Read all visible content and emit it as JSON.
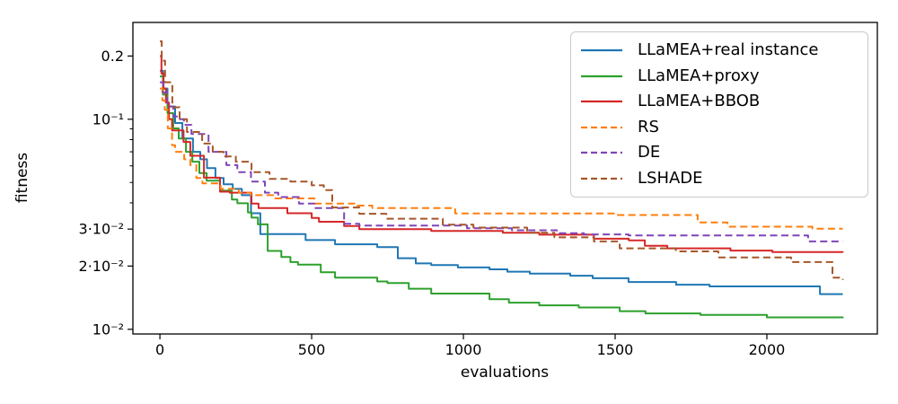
{
  "chart_data": {
    "type": "line",
    "title": "",
    "xlabel": "evaluations",
    "ylabel": "fitness",
    "x_scale": "linear",
    "y_scale": "log",
    "xlim": [
      -89,
      2364
    ],
    "ylim": [
      0.0095,
      0.289
    ],
    "grid": false,
    "legend_position": "upper right",
    "x_ticks": [
      {
        "value": 0,
        "label": "0"
      },
      {
        "value": 500,
        "label": "500"
      },
      {
        "value": 1000,
        "label": "1000"
      },
      {
        "value": 1500,
        "label": "1500"
      },
      {
        "value": 2000,
        "label": "2000"
      }
    ],
    "y_ticks": [
      {
        "value": 0.2,
        "label": "0.2"
      },
      {
        "value": 0.1,
        "label": "10⁻¹"
      },
      {
        "value": 0.03,
        "label": "3·10⁻²"
      },
      {
        "value": 0.02,
        "label": "2·10⁻²"
      },
      {
        "value": 0.01,
        "label": "10⁻²"
      }
    ],
    "y_minor_ticks": [
      0.09,
      0.08,
      0.07,
      0.06,
      0.05,
      0.04
    ],
    "series": [
      {
        "name": "LLaMEA+real instance",
        "color": "#1f77b4",
        "style": "solid",
        "points": [
          [
            0,
            0.17
          ],
          [
            10,
            0.14
          ],
          [
            25,
            0.115
          ],
          [
            50,
            0.096
          ],
          [
            74,
            0.081
          ],
          [
            109,
            0.07
          ],
          [
            133,
            0.0645
          ],
          [
            155,
            0.0585
          ],
          [
            183,
            0.0525
          ],
          [
            210,
            0.049
          ],
          [
            240,
            0.0466
          ],
          [
            270,
            0.0435
          ],
          [
            300,
            0.0357
          ],
          [
            331,
            0.0284
          ],
          [
            480,
            0.0266
          ],
          [
            577,
            0.0254
          ],
          [
            716,
            0.0246
          ],
          [
            784,
            0.0218
          ],
          [
            843,
            0.0206
          ],
          [
            894,
            0.0202
          ],
          [
            982,
            0.0197
          ],
          [
            1086,
            0.0193
          ],
          [
            1145,
            0.0188
          ],
          [
            1219,
            0.0184
          ],
          [
            1352,
            0.018
          ],
          [
            1426,
            0.0175
          ],
          [
            1544,
            0.0168
          ],
          [
            1701,
            0.0163
          ],
          [
            1811,
            0.016
          ],
          [
            2175,
            0.0147
          ],
          [
            2250,
            0.0147
          ]
        ]
      },
      {
        "name": "LLaMEA+proxy",
        "color": "#2ca02c",
        "style": "solid",
        "points": [
          [
            0,
            0.16
          ],
          [
            10,
            0.131
          ],
          [
            25,
            0.107
          ],
          [
            44,
            0.0905
          ],
          [
            62,
            0.081
          ],
          [
            86,
            0.07
          ],
          [
            107,
            0.0628
          ],
          [
            130,
            0.0555
          ],
          [
            154,
            0.051
          ],
          [
            198,
            0.0457
          ],
          [
            237,
            0.0415
          ],
          [
            255,
            0.0398
          ],
          [
            290,
            0.036
          ],
          [
            302,
            0.034
          ],
          [
            323,
            0.0316
          ],
          [
            355,
            0.0236
          ],
          [
            400,
            0.0221
          ],
          [
            430,
            0.0209
          ],
          [
            455,
            0.0203
          ],
          [
            530,
            0.0187
          ],
          [
            577,
            0.0176
          ],
          [
            716,
            0.0169
          ],
          [
            750,
            0.0166
          ],
          [
            820,
            0.0156
          ],
          [
            894,
            0.0148
          ],
          [
            1086,
            0.0139
          ],
          [
            1150,
            0.0134
          ],
          [
            1250,
            0.013
          ],
          [
            1380,
            0.0127
          ],
          [
            1515,
            0.0122
          ],
          [
            1600,
            0.0119
          ],
          [
            1781,
            0.0117
          ],
          [
            2000,
            0.0114
          ],
          [
            2250,
            0.0113
          ]
        ]
      },
      {
        "name": "LLaMEA+BBOB",
        "color": "#d62728",
        "style": "solid",
        "points": [
          [
            0,
            0.2
          ],
          [
            5,
            0.165
          ],
          [
            12,
            0.14
          ],
          [
            20,
            0.12
          ],
          [
            30,
            0.1
          ],
          [
            40,
            0.0885
          ],
          [
            78,
            0.078
          ],
          [
            100,
            0.067
          ],
          [
            145,
            0.0527
          ],
          [
            198,
            0.0452
          ],
          [
            230,
            0.0447
          ],
          [
            302,
            0.0397
          ],
          [
            325,
            0.0378
          ],
          [
            420,
            0.0357
          ],
          [
            500,
            0.0339
          ],
          [
            524,
            0.0325
          ],
          [
            607,
            0.031
          ],
          [
            657,
            0.03
          ],
          [
            894,
            0.0294
          ],
          [
            1130,
            0.0288
          ],
          [
            1250,
            0.0282
          ],
          [
            1430,
            0.027
          ],
          [
            1545,
            0.0265
          ],
          [
            1598,
            0.025
          ],
          [
            1672,
            0.0243
          ],
          [
            1880,
            0.0237
          ],
          [
            2018,
            0.0233
          ],
          [
            2250,
            0.0232
          ]
        ]
      },
      {
        "name": "RS",
        "color": "#ff7f0e",
        "style": "dashed",
        "points": [
          [
            0,
            0.14
          ],
          [
            8,
            0.123
          ],
          [
            16,
            0.111
          ],
          [
            26,
            0.0905
          ],
          [
            40,
            0.0752
          ],
          [
            50,
            0.07
          ],
          [
            80,
            0.0645
          ],
          [
            100,
            0.0605
          ],
          [
            120,
            0.0525
          ],
          [
            140,
            0.0495
          ],
          [
            200,
            0.0466
          ],
          [
            260,
            0.0447
          ],
          [
            300,
            0.0435
          ],
          [
            380,
            0.042
          ],
          [
            509,
            0.0397
          ],
          [
            650,
            0.0388
          ],
          [
            700,
            0.0378
          ],
          [
            973,
            0.0356
          ],
          [
            1500,
            0.035
          ],
          [
            1772,
            0.0323
          ],
          [
            1870,
            0.0308
          ],
          [
            2150,
            0.0301
          ],
          [
            2250,
            0.0301
          ]
        ]
      },
      {
        "name": "DE",
        "color": "#7e45b8",
        "style": "dashed",
        "points": [
          [
            0,
            0.15
          ],
          [
            10,
            0.134
          ],
          [
            25,
            0.115
          ],
          [
            44,
            0.103
          ],
          [
            59,
            0.1
          ],
          [
            79,
            0.094
          ],
          [
            104,
            0.085
          ],
          [
            160,
            0.07
          ],
          [
            219,
            0.0605
          ],
          [
            255,
            0.056
          ],
          [
            300,
            0.0505
          ],
          [
            346,
            0.0447
          ],
          [
            390,
            0.0426
          ],
          [
            458,
            0.0397
          ],
          [
            509,
            0.0378
          ],
          [
            607,
            0.0318
          ],
          [
            657,
            0.0312
          ],
          [
            1012,
            0.0303
          ],
          [
            1160,
            0.0296
          ],
          [
            1308,
            0.0287
          ],
          [
            1397,
            0.0283
          ],
          [
            1544,
            0.028
          ],
          [
            2136,
            0.0262
          ],
          [
            2250,
            0.0262
          ]
        ]
      },
      {
        "name": "LSHADE",
        "color": "#a65628",
        "style": "dashed",
        "points": [
          [
            0,
            0.235
          ],
          [
            6,
            0.19
          ],
          [
            17,
            0.15
          ],
          [
            41,
            0.114
          ],
          [
            65,
            0.1
          ],
          [
            89,
            0.087
          ],
          [
            139,
            0.0766
          ],
          [
            174,
            0.07
          ],
          [
            210,
            0.0665
          ],
          [
            250,
            0.0628
          ],
          [
            302,
            0.056
          ],
          [
            361,
            0.052
          ],
          [
            430,
            0.0505
          ],
          [
            500,
            0.0485
          ],
          [
            540,
            0.046
          ],
          [
            568,
            0.038
          ],
          [
            657,
            0.0355
          ],
          [
            746,
            0.0336
          ],
          [
            932,
            0.0315
          ],
          [
            1033,
            0.0305
          ],
          [
            1210,
            0.0288
          ],
          [
            1300,
            0.0274
          ],
          [
            1430,
            0.0262
          ],
          [
            1515,
            0.0243
          ],
          [
            1700,
            0.0235
          ],
          [
            1840,
            0.022
          ],
          [
            2080,
            0.0209
          ],
          [
            2216,
            0.0176
          ],
          [
            2250,
            0.0172
          ]
        ]
      }
    ]
  }
}
